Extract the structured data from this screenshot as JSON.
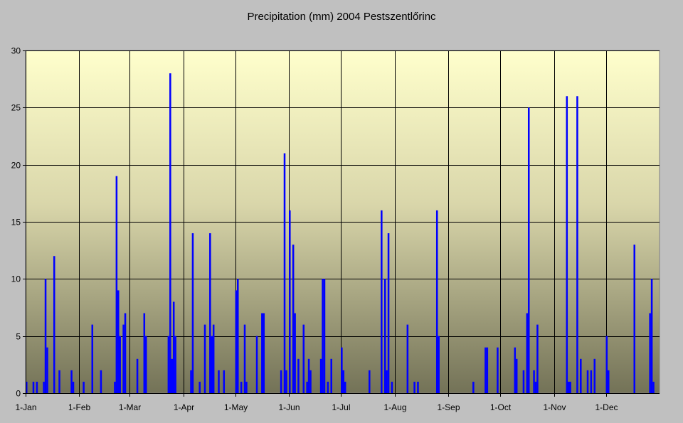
{
  "chart_data": {
    "type": "bar",
    "title": "Precipitation (mm) 2004 Pestszentlőrinc",
    "xlabel": "",
    "ylabel": "",
    "ylim": [
      0,
      30
    ],
    "yticks": [
      0,
      5,
      10,
      15,
      20,
      25,
      30
    ],
    "days_in_year": 366,
    "grid": true,
    "x_ticks": [
      {
        "label": "1-Jan",
        "day": 1
      },
      {
        "label": "1-Feb",
        "day": 32
      },
      {
        "label": "1-Mar",
        "day": 61
      },
      {
        "label": "1-Apr",
        "day": 92
      },
      {
        "label": "1-May",
        "day": 122
      },
      {
        "label": "1-Jun",
        "day": 153
      },
      {
        "label": "1-Jul",
        "day": 183
      },
      {
        "label": "1-Aug",
        "day": 214
      },
      {
        "label": "1-Sep",
        "day": 245
      },
      {
        "label": "1-Oct",
        "day": 275
      },
      {
        "label": "1-Nov",
        "day": 306
      },
      {
        "label": "1-Dec",
        "day": 336
      }
    ],
    "series": [
      {
        "name": "Precipitation (mm)",
        "color": "#0000ff",
        "points": [
          [
            1,
            1
          ],
          [
            5,
            1
          ],
          [
            7,
            1
          ],
          [
            11,
            1
          ],
          [
            12,
            10
          ],
          [
            13,
            4
          ],
          [
            17,
            12
          ],
          [
            20,
            2
          ],
          [
            27,
            2
          ],
          [
            28,
            1
          ],
          [
            34,
            1
          ],
          [
            39,
            6
          ],
          [
            44,
            2
          ],
          [
            52,
            1
          ],
          [
            53,
            19
          ],
          [
            54,
            9
          ],
          [
            55,
            5
          ],
          [
            57,
            6
          ],
          [
            58,
            7
          ],
          [
            65,
            3
          ],
          [
            69,
            7
          ],
          [
            70,
            5
          ],
          [
            83,
            5
          ],
          [
            84,
            28
          ],
          [
            85,
            3
          ],
          [
            86,
            8
          ],
          [
            87,
            5
          ],
          [
            96,
            2
          ],
          [
            97,
            14
          ],
          [
            101,
            1
          ],
          [
            104,
            6
          ],
          [
            107,
            14
          ],
          [
            108,
            5
          ],
          [
            109,
            6
          ],
          [
            112,
            2
          ],
          [
            115,
            2
          ],
          [
            122,
            9
          ],
          [
            123,
            10
          ],
          [
            125,
            1
          ],
          [
            127,
            6
          ],
          [
            128,
            1
          ],
          [
            134,
            5
          ],
          [
            137,
            7
          ],
          [
            138,
            7
          ],
          [
            148,
            2
          ],
          [
            150,
            21
          ],
          [
            151,
            2
          ],
          [
            153,
            16
          ],
          [
            155,
            13
          ],
          [
            156,
            7
          ],
          [
            158,
            3
          ],
          [
            161,
            6
          ],
          [
            163,
            1
          ],
          [
            164,
            3
          ],
          [
            165,
            2
          ],
          [
            171,
            3
          ],
          [
            172,
            10
          ],
          [
            173,
            10
          ],
          [
            175,
            1
          ],
          [
            177,
            3
          ],
          [
            183,
            4
          ],
          [
            184,
            2
          ],
          [
            185,
            1
          ],
          [
            199,
            2
          ],
          [
            206,
            16
          ],
          [
            208,
            10
          ],
          [
            209,
            2
          ],
          [
            210,
            14
          ],
          [
            212,
            1
          ],
          [
            221,
            6
          ],
          [
            225,
            1
          ],
          [
            227,
            1
          ],
          [
            238,
            16
          ],
          [
            239,
            5
          ],
          [
            259,
            1
          ],
          [
            266,
            4
          ],
          [
            267,
            4
          ],
          [
            273,
            4
          ],
          [
            283,
            4
          ],
          [
            284,
            3
          ],
          [
            288,
            2
          ],
          [
            290,
            7
          ],
          [
            291,
            25
          ],
          [
            294,
            2
          ],
          [
            295,
            1
          ],
          [
            296,
            6
          ],
          [
            313,
            26
          ],
          [
            314,
            1
          ],
          [
            315,
            1
          ],
          [
            319,
            26
          ],
          [
            321,
            3
          ],
          [
            325,
            2
          ],
          [
            327,
            2
          ],
          [
            329,
            3
          ],
          [
            336,
            5
          ],
          [
            337,
            2
          ],
          [
            352,
            13
          ],
          [
            361,
            7
          ],
          [
            362,
            10
          ],
          [
            363,
            1
          ]
        ]
      }
    ]
  }
}
